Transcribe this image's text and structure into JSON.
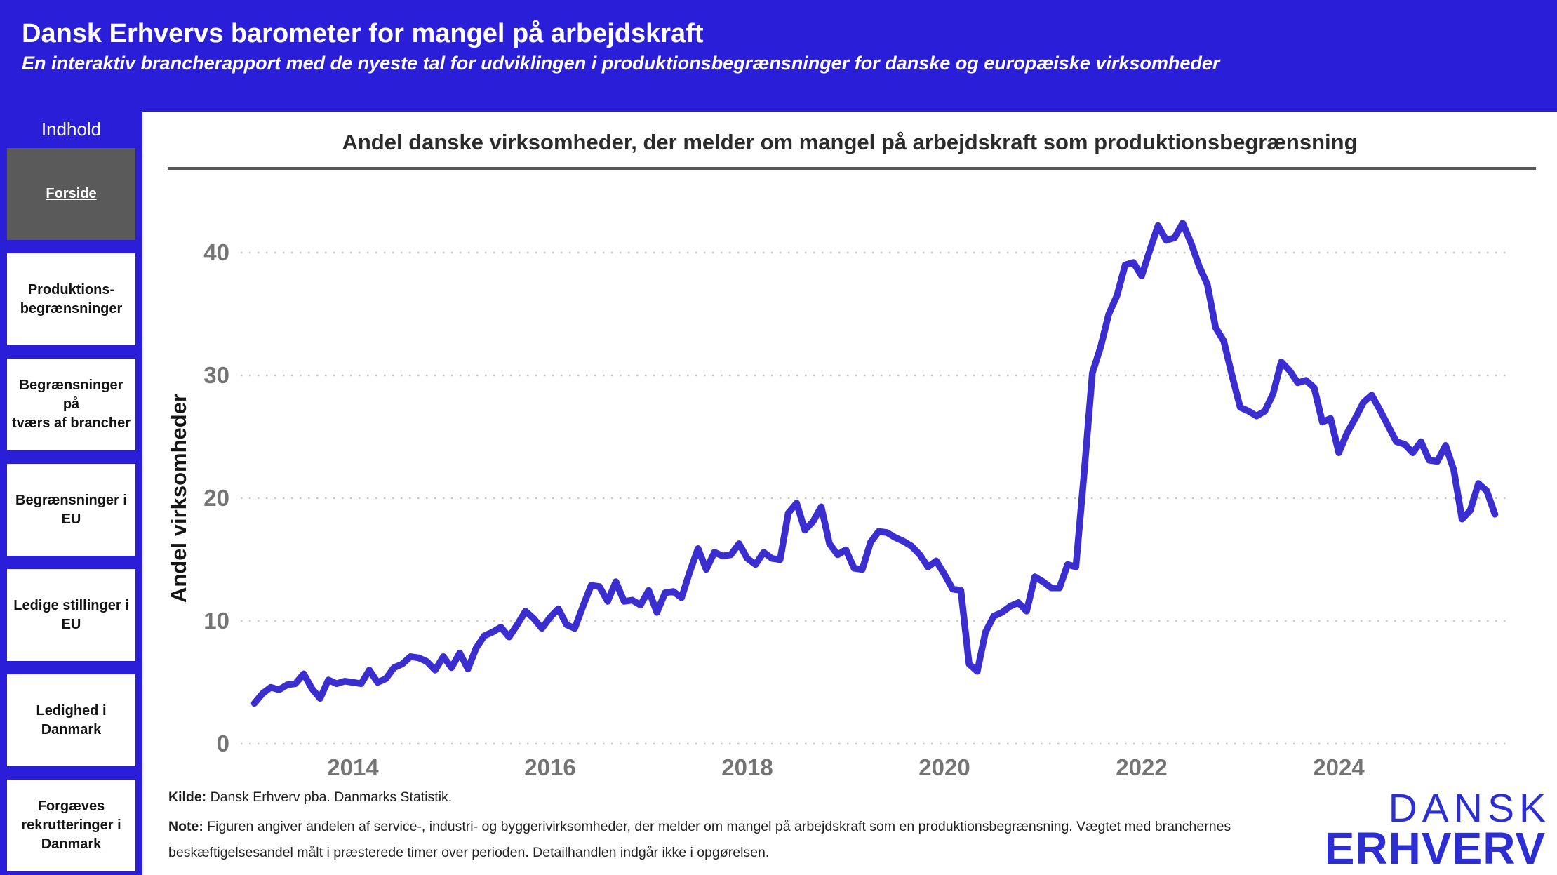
{
  "header": {
    "title": "Dansk Erhvervs barometer for mangel på arbejdskraft",
    "subtitle": "En interaktiv brancherapport med de nyeste tal for udviklingen i produktionsbegrænsninger for danske og europæiske virksomheder"
  },
  "sidebar": {
    "heading": "Indhold",
    "items": [
      {
        "id": "forside",
        "label": "Forside",
        "active": true
      },
      {
        "id": "produktionsbegraensninger",
        "label": "Produktions-\nbegrænsninger",
        "active": false
      },
      {
        "id": "begraensninger-tvaers-brancher",
        "label": "Begrænsninger på\ntværs af brancher",
        "active": false
      },
      {
        "id": "begraensninger-eu",
        "label": "Begrænsninger i\nEU",
        "active": false
      },
      {
        "id": "ledige-stillinger-eu",
        "label": "Ledige stillinger i\nEU",
        "active": false
      },
      {
        "id": "ledighed-danmark",
        "label": "Ledighed i\nDanmark",
        "active": false
      },
      {
        "id": "forgaeves-rekrutteringer-danmark",
        "label": "Forgæves\nrekrutteringer i\nDanmark",
        "active": false
      }
    ]
  },
  "chart": {
    "title": "Andel danske virksomheder, der melder om mangel på arbejdskraft som produktionsbegrænsning"
  },
  "chart_data": {
    "type": "line",
    "title": "Andel danske virksomheder, der melder om mangel på arbejdskraft som produktionsbegrænsning",
    "xlabel": "",
    "ylabel": "Andel virksomheder",
    "ylim": [
      0,
      44
    ],
    "x_ticks": [
      2014,
      2016,
      2018,
      2020,
      2022,
      2024
    ],
    "y_ticks": [
      0,
      10,
      20,
      30,
      40
    ],
    "grid": "dotted-horizontal",
    "legend_position": "none",
    "line_color": "#3a2ed0",
    "series": [
      {
        "name": "Andel virksomheder",
        "frequency": "monthly",
        "start_year": 2013,
        "start_month": 1,
        "end_year": 2025,
        "end_month": 8,
        "values": [
          3.3,
          4.1,
          4.6,
          4.4,
          4.8,
          4.9,
          5.7,
          4.5,
          3.7,
          5.2,
          4.9,
          5.1,
          5.0,
          4.9,
          6.0,
          5.0,
          5.3,
          6.2,
          6.5,
          7.1,
          7.0,
          6.7,
          6.0,
          7.1,
          6.2,
          7.4,
          6.1,
          7.8,
          8.8,
          9.1,
          9.5,
          8.7,
          9.7,
          10.8,
          10.2,
          9.4,
          10.3,
          11.0,
          9.7,
          9.4,
          11.2,
          12.9,
          12.8,
          11.6,
          13.2,
          11.6,
          11.7,
          11.3,
          12.5,
          10.7,
          12.3,
          12.4,
          11.9,
          14.0,
          15.9,
          14.2,
          15.6,
          15.3,
          15.4,
          16.3,
          15.1,
          14.6,
          15.6,
          15.1,
          15.0,
          18.8,
          19.6,
          17.4,
          18.1,
          19.3,
          16.3,
          15.4,
          15.8,
          14.3,
          14.2,
          16.4,
          17.3,
          17.2,
          16.8,
          16.5,
          16.1,
          15.4,
          14.4,
          14.9,
          13.8,
          12.6,
          12.5,
          6.5,
          5.9,
          9.1,
          10.4,
          10.7,
          11.2,
          11.5,
          10.8,
          13.6,
          13.2,
          12.7,
          12.7,
          14.6,
          14.4,
          22.0,
          30.2,
          32.3,
          35.0,
          36.5,
          39.0,
          39.2,
          38.1,
          40.2,
          42.2,
          41.0,
          41.2,
          42.4,
          40.8,
          38.9,
          37.4,
          33.9,
          32.8,
          30.0,
          27.4,
          27.1,
          26.7,
          27.1,
          28.5,
          31.1,
          30.4,
          29.4,
          29.6,
          29.0,
          26.2,
          26.5,
          23.7,
          25.3,
          26.5,
          27.8,
          28.4,
          27.2,
          25.9,
          24.6,
          24.4,
          23.7,
          24.6,
          23.1,
          23.0,
          24.3,
          22.3,
          18.3,
          19.0,
          21.2,
          20.6,
          18.7
        ]
      }
    ]
  },
  "footer": {
    "source_label": "Kilde:",
    "source_text": "Dansk Erhverv pba. Danmarks Statistik.",
    "note_label": "Note:",
    "note_text": "Figuren angiver andelen af service-, industri- og byggerivirksomheder, der melder om mangel på arbejdskraft som en produktionsbegrænsning. Vægtet med branchernes beskæftigelsesandel målt i præsterede timer over perioden. Detailhandlen indgår ikke i opgørelsen."
  },
  "logo": {
    "line1": "DANSK",
    "line2": "ERHVERV"
  },
  "colors": {
    "header_background": "#2b1ed9",
    "sidebar_background": "#2b1ed9",
    "active_item_background": "#5a5a5a",
    "line_color": "#3a2ed0",
    "tick_label_gray": "#747474",
    "gridline_gray": "#c9c9c9",
    "title_rule_gray": "#565656",
    "logo_blue": "#2d2dd4"
  }
}
